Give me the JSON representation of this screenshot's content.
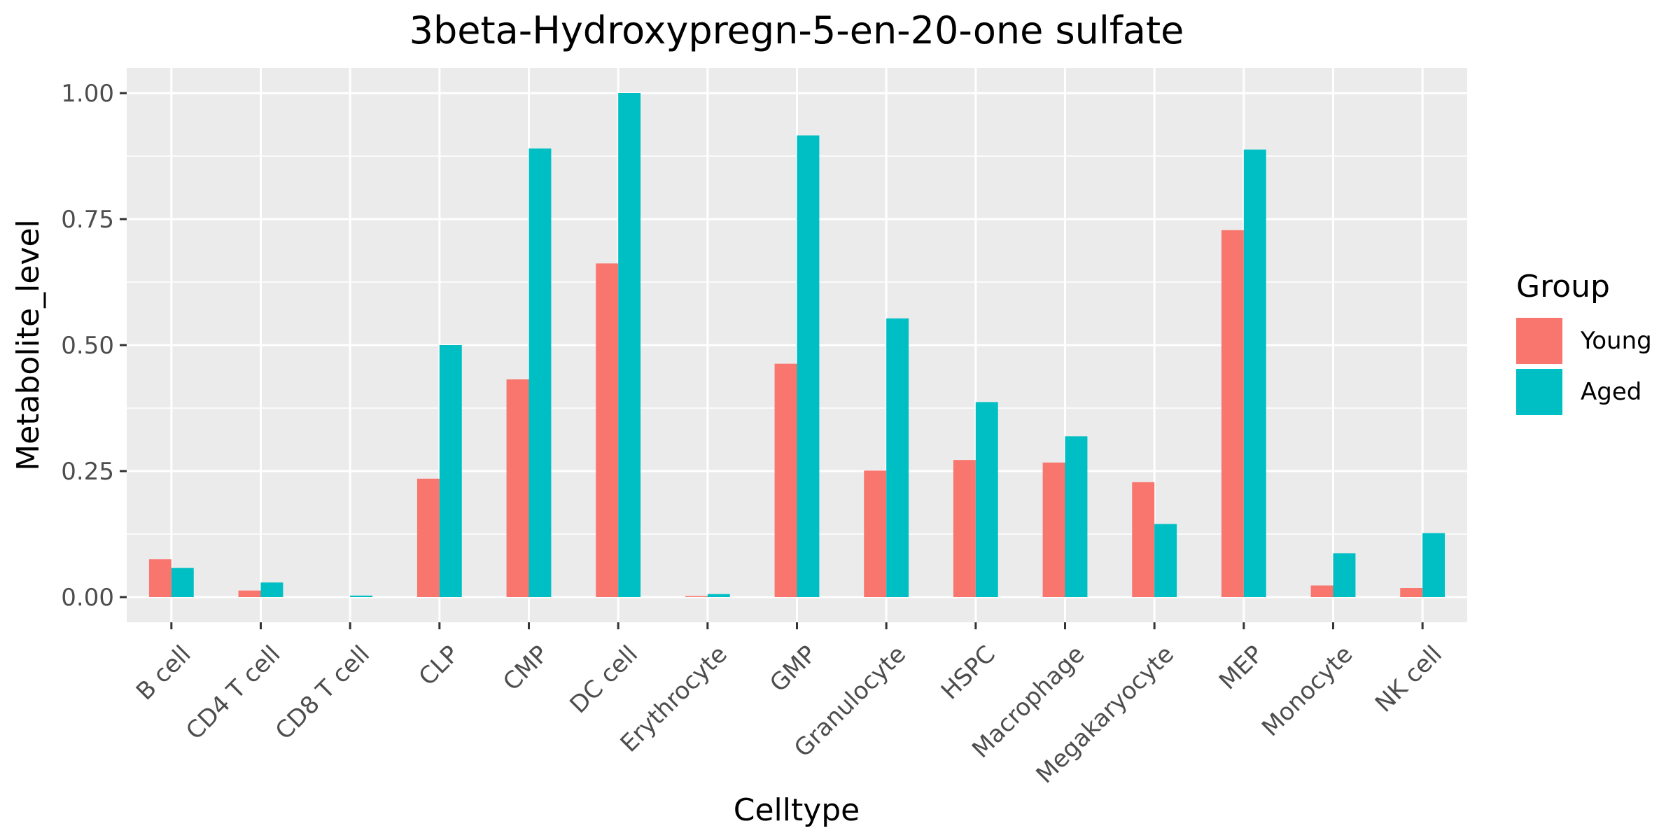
{
  "chart_data": {
    "type": "bar",
    "title": "3beta-Hydroxypregn-5-en-20-one sulfate",
    "xlabel": "Celltype",
    "ylabel": "Metabolite_level",
    "ylim": [
      -0.05,
      1.05
    ],
    "yticks": [
      0.0,
      0.25,
      0.5,
      0.75,
      1.0
    ],
    "ytick_labels": [
      "0.00",
      "0.25",
      "0.50",
      "0.75",
      "1.00"
    ],
    "grid": true,
    "legend_position": "right",
    "legend_title": "Group",
    "categories": [
      "B cell",
      "CD4 T cell",
      "CD8 T cell",
      "CLP",
      "CMP",
      "DC cell",
      "Erythrocyte",
      "GMP",
      "Granulocyte",
      "HSPC",
      "Macrophage",
      "Megakaryocyte",
      "MEP",
      "Monocyte",
      "NK cell"
    ],
    "series": [
      {
        "name": "Young",
        "color": "#F8766D",
        "values": [
          0.075,
          0.013,
          0.0,
          0.235,
          0.432,
          0.662,
          0.002,
          0.463,
          0.251,
          0.272,
          0.267,
          0.228,
          0.728,
          0.023,
          0.018
        ]
      },
      {
        "name": "Aged",
        "color": "#00BFC4",
        "values": [
          0.058,
          0.029,
          0.003,
          0.5,
          0.89,
          1.0,
          0.006,
          0.916,
          0.553,
          0.387,
          0.319,
          0.145,
          0.888,
          0.087,
          0.127
        ]
      }
    ],
    "panel_background": "#EBEBEB",
    "grid_color": "#FFFFFF"
  }
}
